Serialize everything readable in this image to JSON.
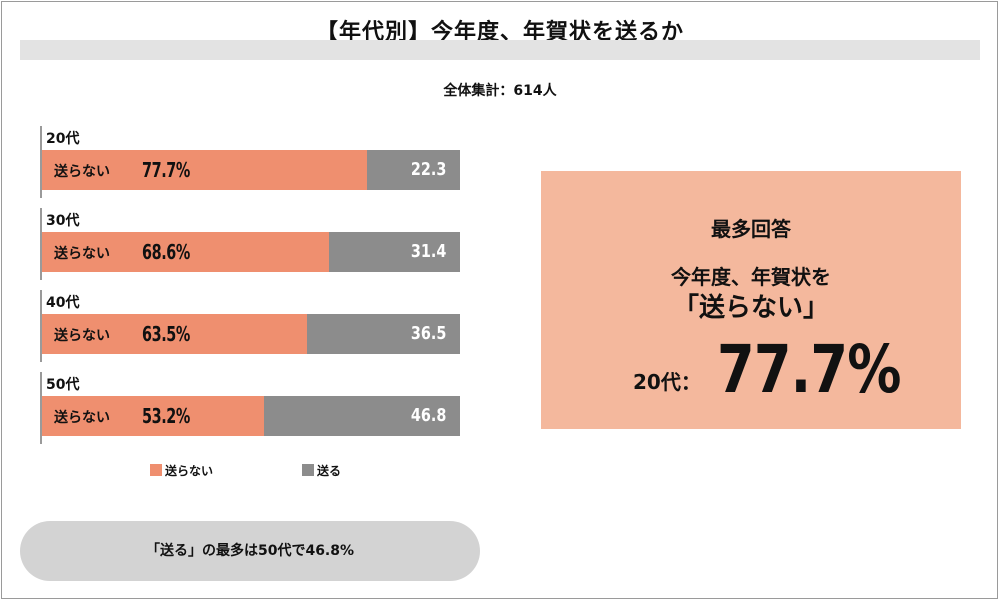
{
  "title": "【年代別】今年度、年賀状を送るか",
  "subtitle": "全体集計：614人",
  "colors": {
    "not_send": "#ef8f6f",
    "send": "#8c8c8c",
    "highlight_bg": "#f4b89d",
    "callout_bg": "#d3d3d3"
  },
  "chart_data": {
    "type": "bar",
    "orientation": "horizontal-stacked-100",
    "categories": [
      "20代",
      "30代",
      "40代",
      "50代"
    ],
    "series": [
      {
        "name": "送らない",
        "values": [
          77.7,
          68.6,
          63.5,
          53.2
        ],
        "labels": [
          "77.7%",
          "68.6%",
          "63.5%",
          "53.2%"
        ]
      },
      {
        "name": "送る",
        "values": [
          22.3,
          31.4,
          36.5,
          46.8
        ],
        "labels": [
          "22.3",
          "31.4",
          "36.5",
          "46.8"
        ]
      }
    ],
    "ylim": [
      0,
      100
    ],
    "legend": "bottom"
  },
  "bar_text": "送らない",
  "legend": {
    "not_send": "送らない",
    "send": "送る"
  },
  "callout": "「送る」の最多は50代で46.8%",
  "highlight": {
    "heading": "最多回答",
    "line1": "今年度、年賀状を",
    "line2": "「送らない」",
    "age_label": "20代：",
    "value": "77.7%"
  }
}
